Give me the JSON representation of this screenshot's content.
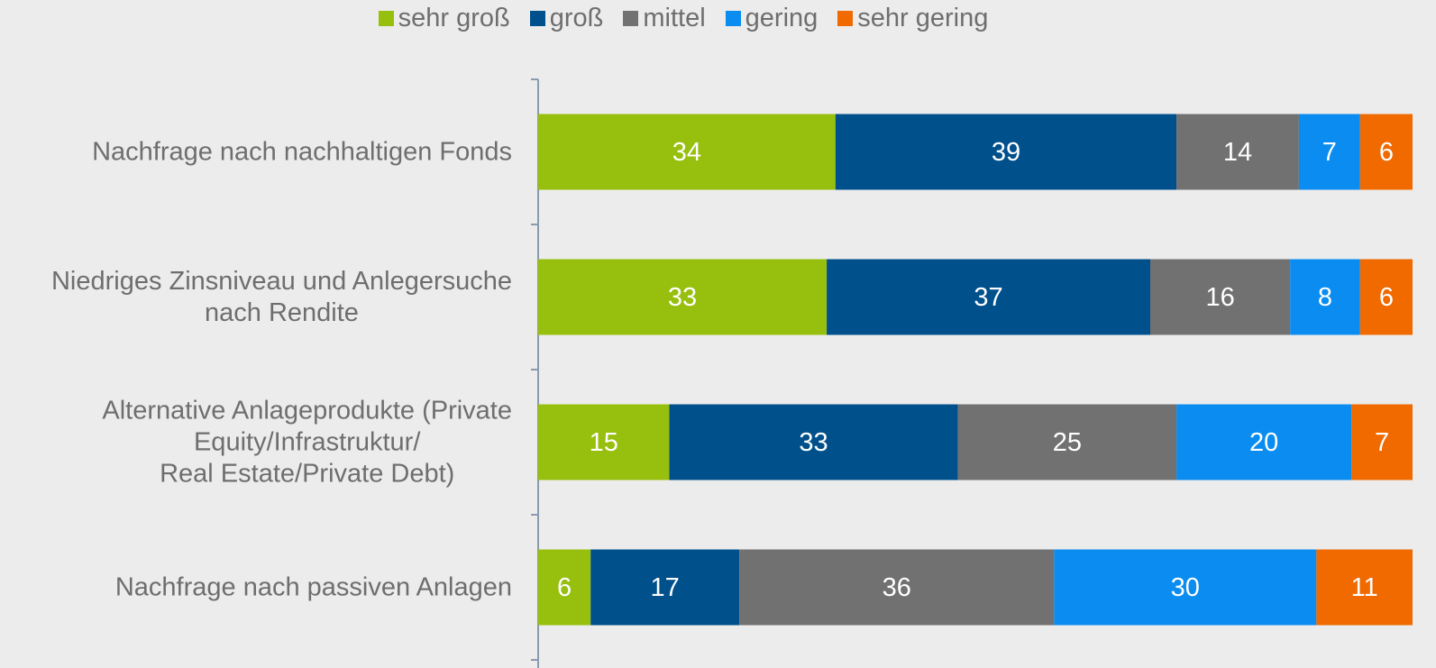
{
  "chart_data": {
    "type": "stacked-bar-horizontal",
    "categories": [
      "Nachfrage nach nachhaltigen Fonds",
      "Niedriges Zinsniveau und Anlegersuche\nnach Rendite",
      "Alternative Anlageprodukte (Private\nEquity/Infrastruktur/\nReal Estate/Private Debt)",
      "Nachfrage nach passiven Anlagen"
    ],
    "series": [
      {
        "name": "sehr groß",
        "color": "#97bf0d",
        "values": [
          34,
          33,
          15,
          6
        ]
      },
      {
        "name": "groß",
        "color": "#00508c",
        "values": [
          39,
          37,
          33,
          17
        ]
      },
      {
        "name": "mittel",
        "color": "#717171",
        "values": [
          14,
          16,
          25,
          36
        ]
      },
      {
        "name": "gering",
        "color": "#0a8cf0",
        "values": [
          7,
          8,
          20,
          30
        ]
      },
      {
        "name": "sehr gering",
        "color": "#f06a00",
        "values": [
          6,
          6,
          7,
          11
        ]
      }
    ],
    "xlim": [
      0,
      100
    ],
    "legend": "top"
  }
}
